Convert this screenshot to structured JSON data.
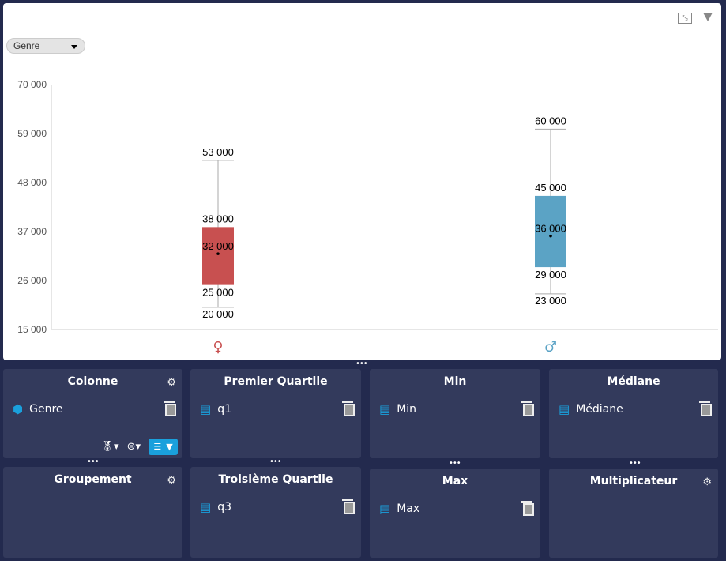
{
  "toolbar": {
    "expand_icon": "expand-icon",
    "menu_icon": "triangle-down-icon"
  },
  "filter": {
    "selected": "Genre"
  },
  "chart_data": {
    "type": "boxplot",
    "ylim": [
      15000,
      70000
    ],
    "yticks": [
      "15 000",
      "26 000",
      "37 000",
      "48 000",
      "59 000",
      "70 000"
    ],
    "ytick_values": [
      15000,
      26000,
      37000,
      48000,
      59000,
      70000
    ],
    "categories": [
      {
        "label": "♀",
        "name": "female",
        "color": "#c85050",
        "min": 20000,
        "q1": 25000,
        "median": 32000,
        "q3": 38000,
        "max": 53000,
        "labels": {
          "min": "20 000",
          "q1": "25 000",
          "median": "32 000",
          "q3": "38 000",
          "max": "53 000"
        }
      },
      {
        "label": "♂",
        "name": "male",
        "color": "#5ba3c5",
        "min": 23000,
        "q1": 29000,
        "median": 36000,
        "q3": 45000,
        "max": 60000,
        "labels": {
          "min": "23 000",
          "q1": "29 000",
          "median": "36 000",
          "q3": "45 000",
          "max": "60 000"
        }
      }
    ]
  },
  "panels": {
    "colonne": {
      "title": "Colonne",
      "item": "Genre"
    },
    "q1": {
      "title": "Premier Quartile",
      "item": "q1"
    },
    "min": {
      "title": "Min",
      "item": "Min"
    },
    "median": {
      "title": "Médiane",
      "item": "Médiane"
    },
    "group": {
      "title": "Groupement"
    },
    "q3": {
      "title": "Troisième Quartile",
      "item": "q3"
    },
    "max": {
      "title": "Max",
      "item": "Max"
    },
    "mult": {
      "title": "Multiplicateur"
    }
  }
}
